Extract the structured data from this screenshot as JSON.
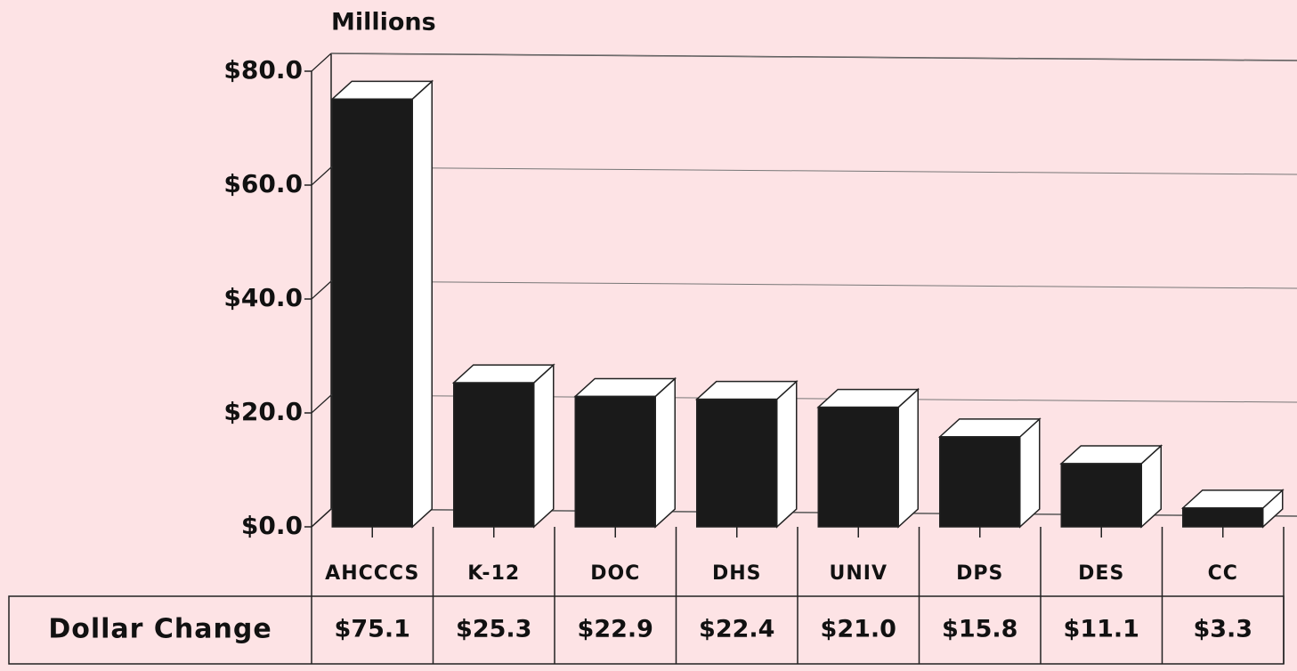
{
  "chart_data": {
    "type": "bar3d",
    "y_axis_label": "Millions",
    "categories": [
      "AHCCCS",
      "K-12",
      "DOC",
      "DHS",
      "UNIV",
      "DPS",
      "DES",
      "CC"
    ],
    "series": [
      {
        "name": "Dollar Change",
        "color": "#1a1a1a",
        "values": [
          75.1,
          25.3,
          22.9,
          22.4,
          21.0,
          15.8,
          11.1,
          3.3
        ],
        "value_labels": [
          "$75.1",
          "$25.3",
          "$22.9",
          "$22.4",
          "$21.0",
          "$15.8",
          "$11.1",
          "$3.3"
        ]
      }
    ],
    "ylim": [
      0,
      80
    ],
    "yticks": [
      {
        "value": 0,
        "label": "$0.0"
      },
      {
        "value": 20,
        "label": "$20.0"
      },
      {
        "value": 40,
        "label": "$40.0"
      },
      {
        "value": 60,
        "label": "$60.0"
      },
      {
        "value": 80,
        "label": "$80.0"
      }
    ],
    "grid": true
  }
}
